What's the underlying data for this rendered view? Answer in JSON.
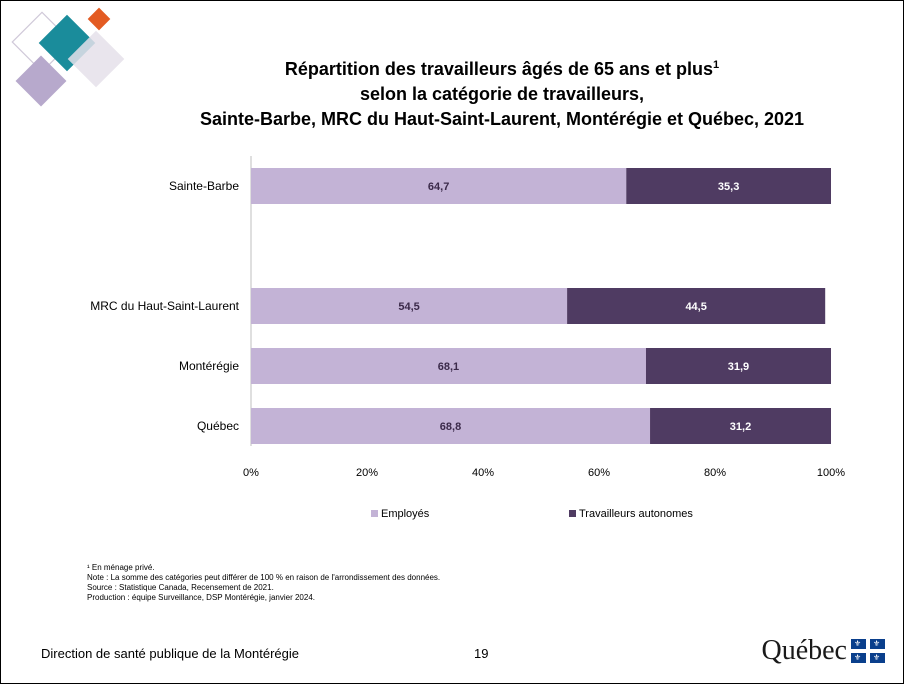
{
  "title": {
    "line1": "Répartition des travailleurs âgés de 65 ans et plus",
    "line1_sup": "1",
    "line2": "selon la catégorie de travailleurs,",
    "line3": "Sainte-Barbe, MRC du Haut-Saint-Laurent, Montérégie et Québec, 2021"
  },
  "colors": {
    "employes": "#c3b3d6",
    "autonomes": "#4f3b62",
    "logo_teal": "#1a8c9b",
    "logo_orange": "#e35b22",
    "logo_lilac": "#b7a9cc",
    "flag_blue": "#0a3f8c"
  },
  "chart_data": {
    "type": "bar",
    "orientation": "horizontal",
    "stacked": "percent",
    "categories": [
      "Sainte-Barbe",
      "MRC du Haut-Saint-Laurent",
      "Montérégie",
      "Québec"
    ],
    "series": [
      {
        "name": "Employés",
        "values": [
          64.7,
          54.5,
          68.1,
          68.8
        ],
        "labels": [
          "64,7",
          "54,5",
          "68,1",
          "68,8"
        ]
      },
      {
        "name": "Travailleurs autonomes",
        "values": [
          35.3,
          44.5,
          31.9,
          31.2
        ],
        "labels": [
          "35,3",
          "44,5",
          "31,9",
          "31,2"
        ]
      }
    ],
    "xlim": [
      0,
      100
    ],
    "xticks": [
      "0%",
      "20%",
      "40%",
      "60%",
      "80%",
      "100%"
    ],
    "legend_position": "bottom",
    "grid": false
  },
  "footnotes": [
    "¹ En ménage privé.",
    "Note : La somme des catégories peut différer de 100 % en raison de l'arrondissement des données.",
    "Source : Statistique Canada, Recensement de 2021.",
    "Production : équipe Surveillance, DSP Montérégie, janvier 2024."
  ],
  "footer": {
    "organization": "Direction de santé publique de la Montérégie",
    "page_number": "19",
    "brand": "Québec"
  },
  "icons": {
    "logo": "decorative-diamonds-logo",
    "flag": "quebec-fleurdelise-flag-icon"
  }
}
